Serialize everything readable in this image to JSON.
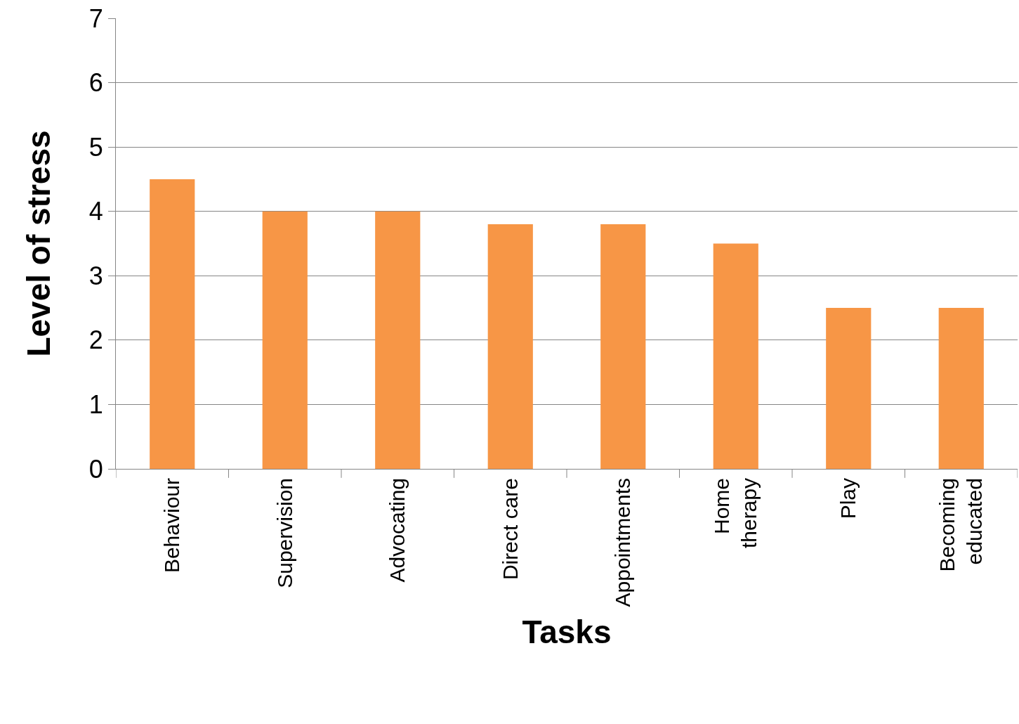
{
  "chart_data": {
    "type": "bar",
    "xlabel": "Tasks",
    "ylabel": "Level of stress",
    "categories": [
      "Behaviour",
      "Supervision",
      "Advocating",
      "Direct care",
      "Appointments",
      "Home therapy",
      "Play",
      "Becoming educated"
    ],
    "values": [
      4.5,
      4.0,
      4.0,
      3.8,
      3.8,
      3.5,
      2.5,
      2.5
    ],
    "color": "#f79646",
    "ylim": [
      0,
      7
    ],
    "yticks": [
      0,
      1,
      2,
      3,
      4,
      5,
      6,
      7
    ],
    "grid": "y"
  }
}
